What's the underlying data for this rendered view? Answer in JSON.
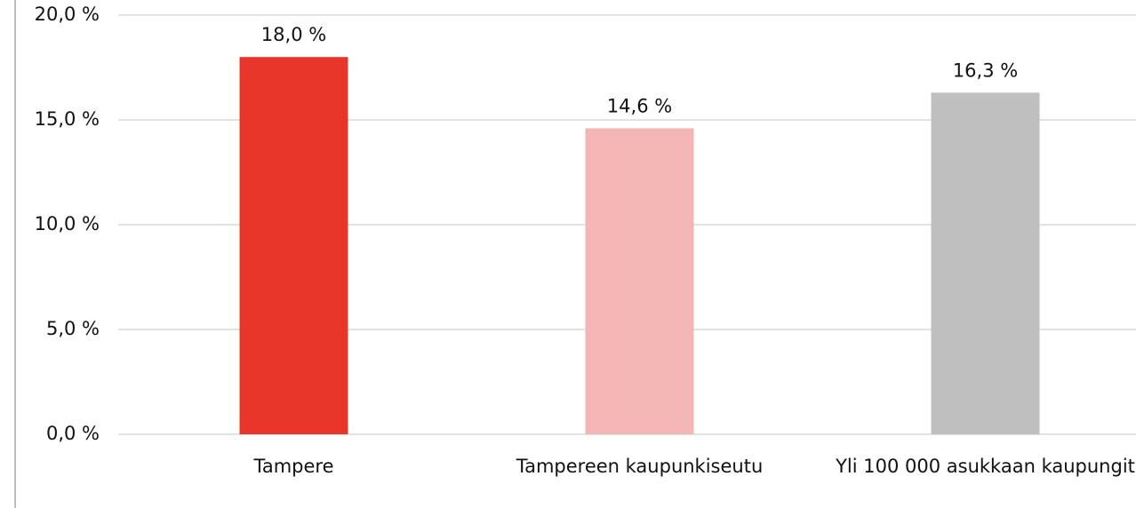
{
  "chart_data": {
    "type": "bar",
    "categories": [
      "Tampere",
      "Tampereen kaupunkiseutu",
      "Yli 100 000 asukkaan kaupungit"
    ],
    "values": [
      18.0,
      14.6,
      16.3
    ],
    "value_labels": [
      "18,0 %",
      "14,6 %",
      "16,3 %"
    ],
    "colors": [
      "#e8352a",
      "#f4b6b4",
      "#bfbfbf"
    ],
    "ylim": [
      0,
      20
    ],
    "yticks": [
      {
        "value": 0,
        "label": "0,0 %"
      },
      {
        "value": 5,
        "label": "5,0 %"
      },
      {
        "value": 10,
        "label": "10,0 %"
      },
      {
        "value": 15,
        "label": "15,0 %"
      },
      {
        "value": 20,
        "label": "20,0 %"
      }
    ],
    "grid": true
  }
}
